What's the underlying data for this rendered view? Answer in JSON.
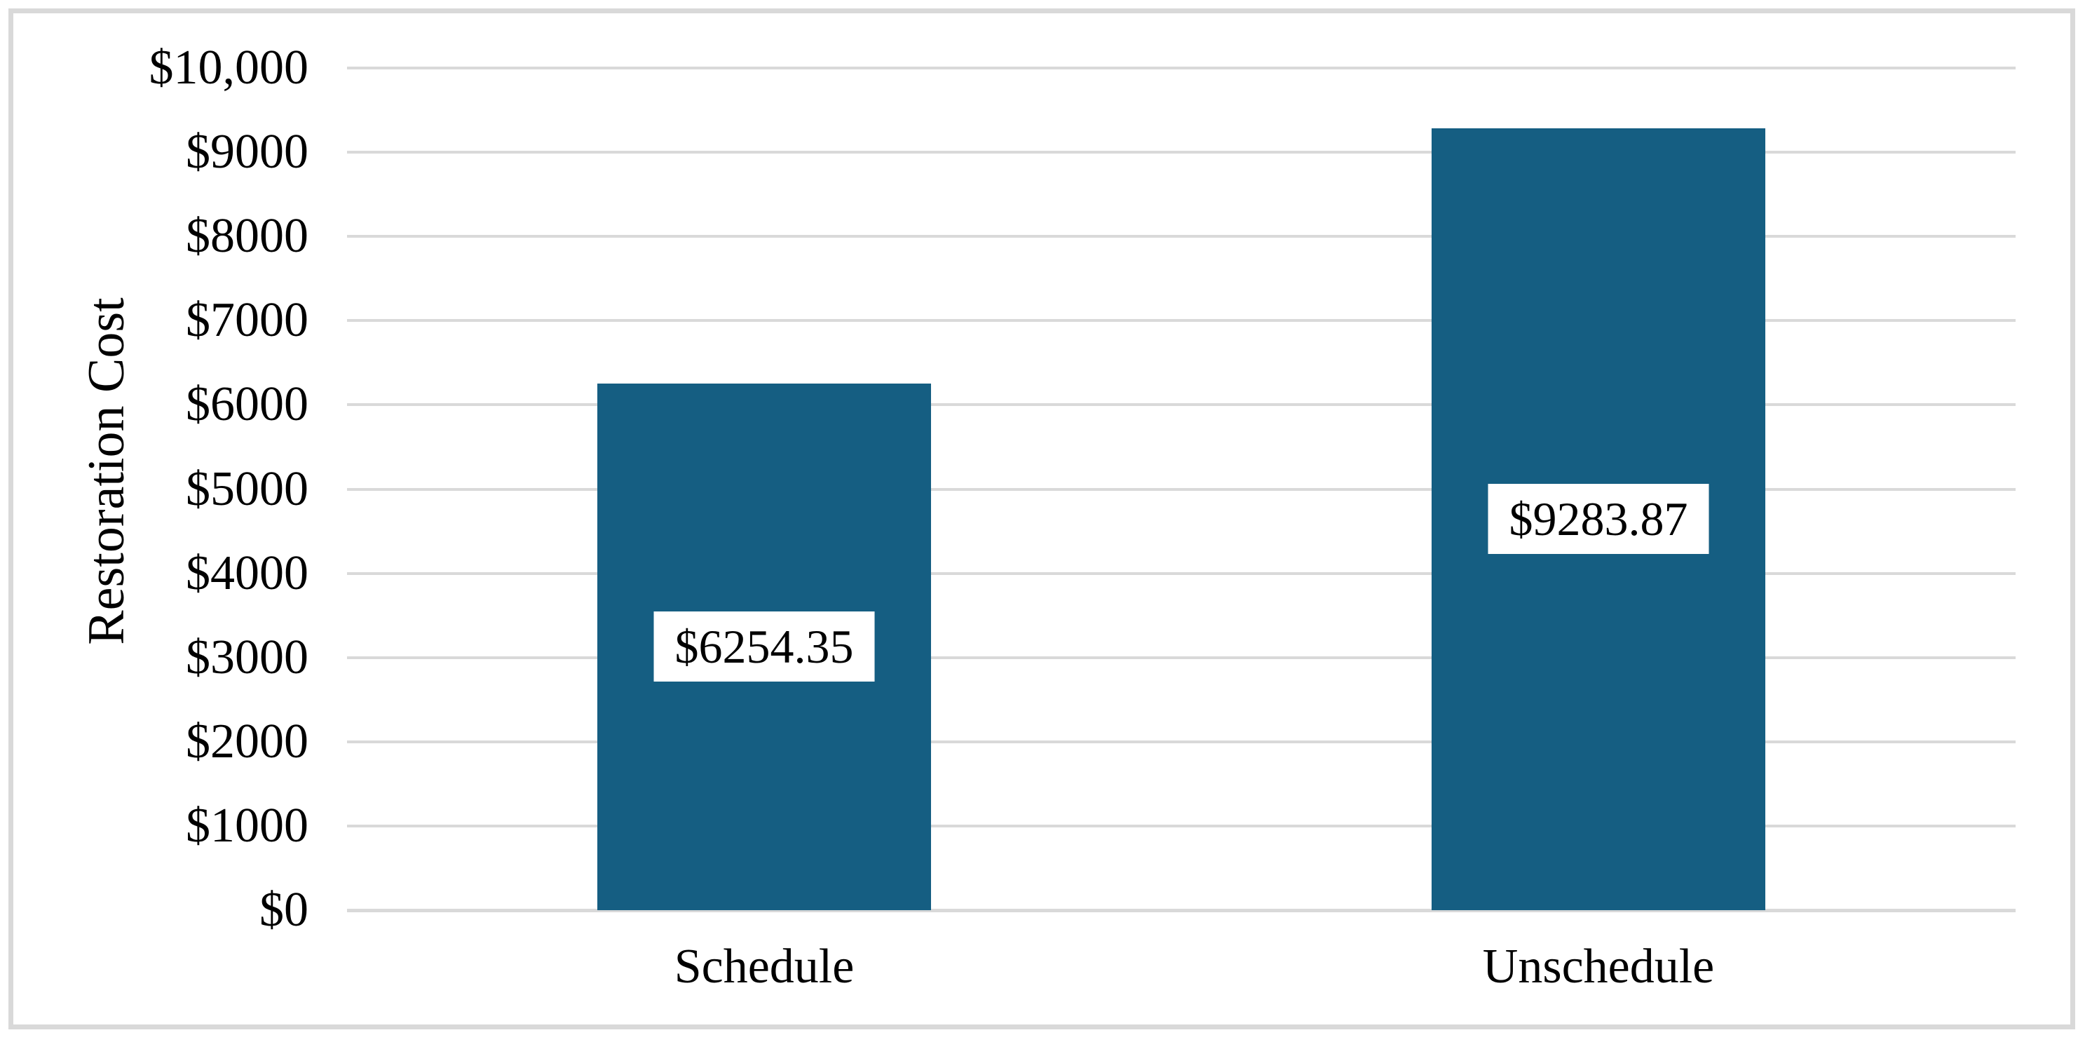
{
  "chart_data": {
    "type": "bar",
    "categories": [
      "Schedule",
      "Unschedule"
    ],
    "values": [
      6254.35,
      9283.87
    ],
    "data_labels": [
      "$6254.35",
      "$9283.87"
    ],
    "title": "",
    "xlabel": "",
    "ylabel": "Restoration Cost",
    "ylim": [
      0,
      10000
    ],
    "ytick_step": 1000,
    "ytick_labels": [
      "$0",
      "$1000",
      "$2000",
      "$3000",
      "$4000",
      "$5000",
      "$6000",
      "$7000",
      "$8000",
      "$9000",
      "$10,000"
    ],
    "grid": true,
    "legend": false,
    "data_label_position": "center-inside",
    "colors": {
      "bar_fill": "#155E82",
      "gridline": "#D9D9D9",
      "chart_border": "#D9D9D9",
      "text": "#000000",
      "data_label_bg": "#FFFFFF",
      "background": "#FFFFFF"
    }
  }
}
